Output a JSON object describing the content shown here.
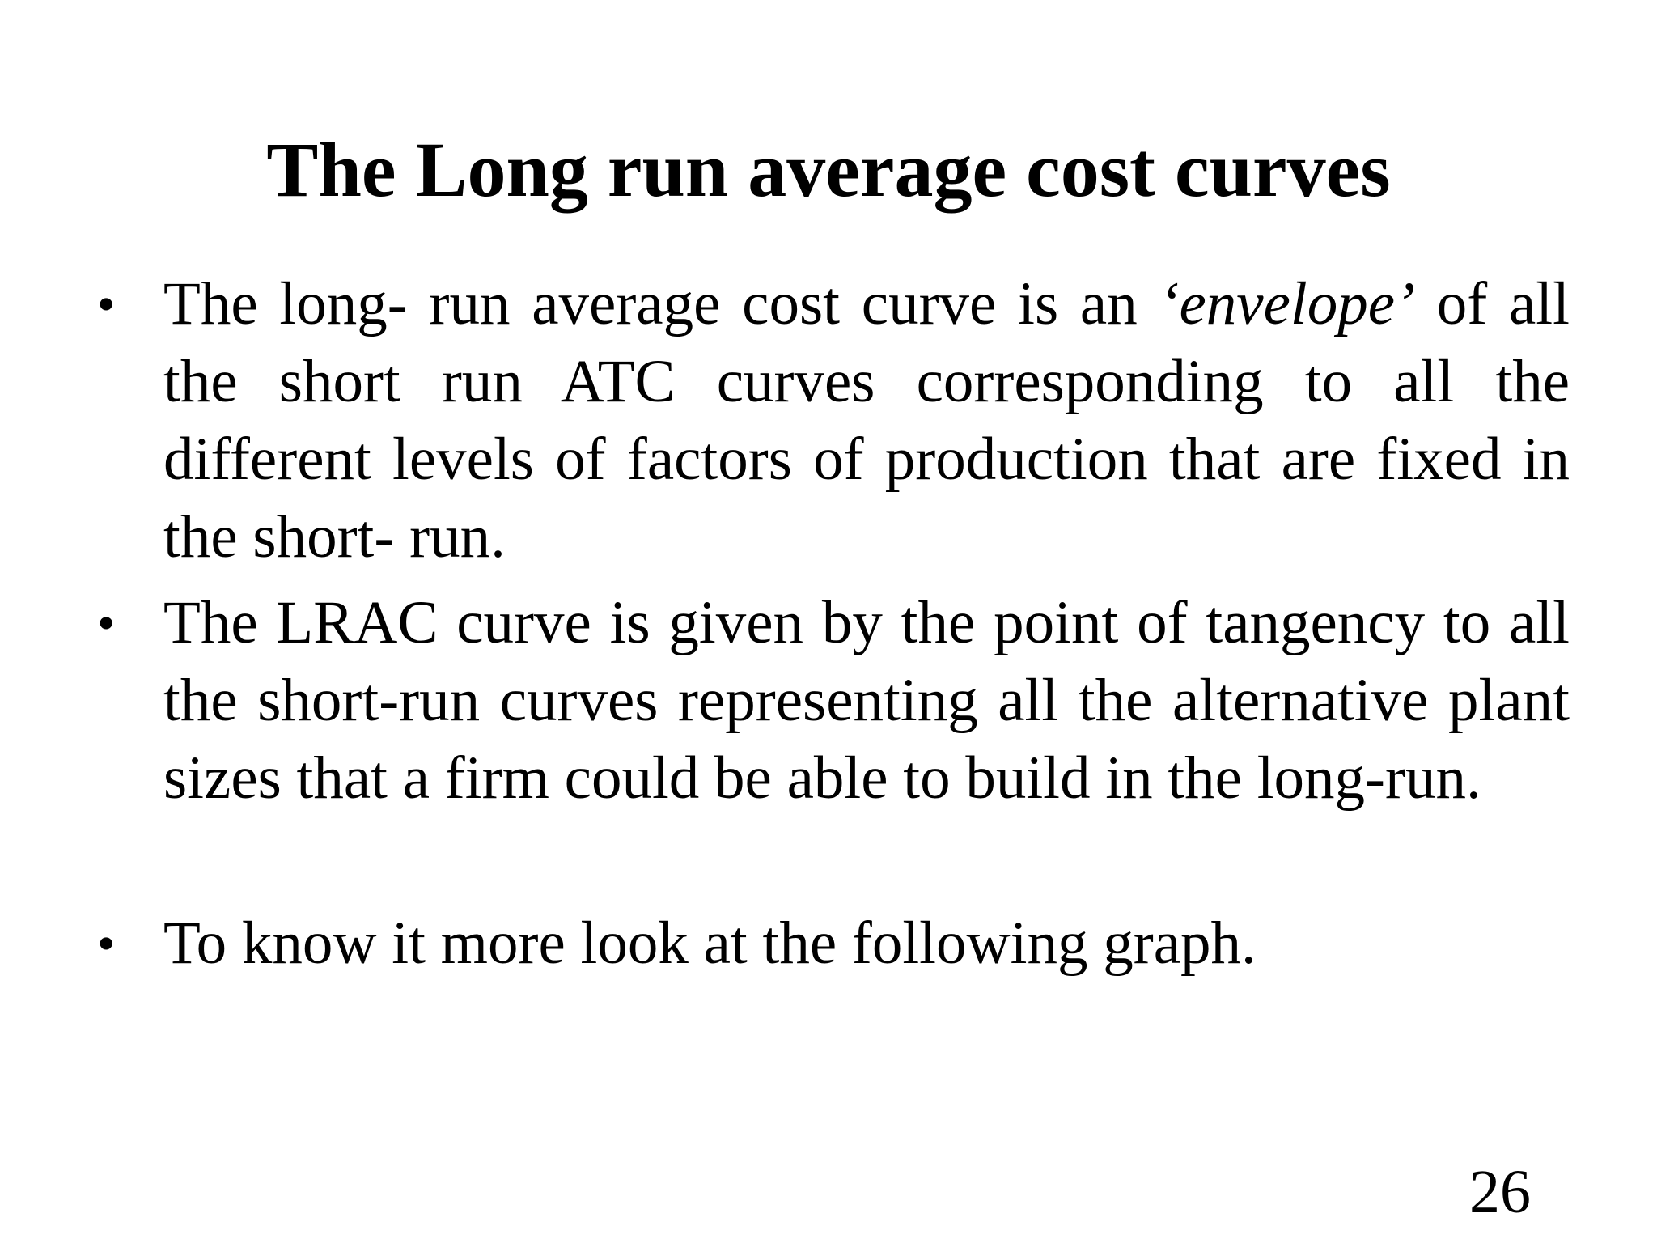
{
  "slide": {
    "title": "The Long run average cost curves",
    "bullet_symbol": "•",
    "bullet1": {
      "before": "The long- run average cost curve is an ",
      "emph": "‘envelope’",
      "after": " of all the short run ATC curves corresponding to all the different levels of factors of production that are fixed in the short- run."
    },
    "bullet2": "The LRAC curve is given by the point of tangency to all the short-run curves representing all the alternative plant sizes that a firm could be able to build in the long-run.",
    "bullet3": "To know it more look at the following graph.",
    "page_number": "26"
  }
}
